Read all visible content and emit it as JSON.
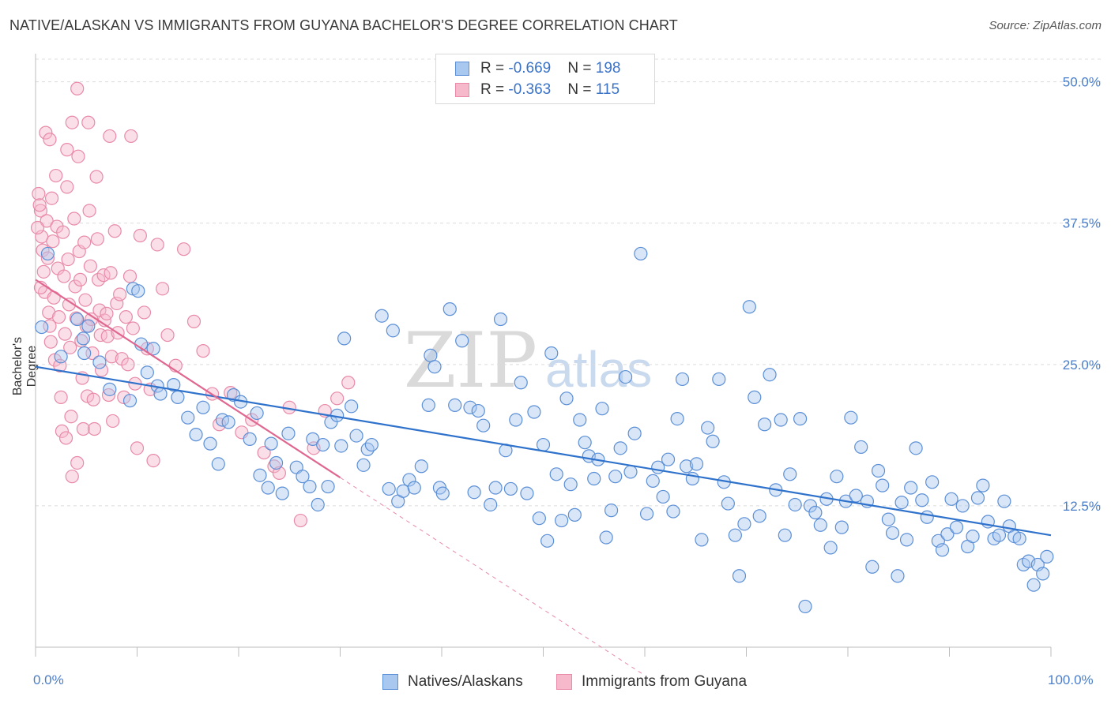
{
  "title": "NATIVE/ALASKAN VS IMMIGRANTS FROM GUYANA BACHELOR'S DEGREE CORRELATION CHART",
  "source": "Source: ZipAtlas.com",
  "watermark": {
    "zip": "ZIP",
    "atlas": "atlas"
  },
  "legend": {
    "r_label": "R = ",
    "n_label": "N = ",
    "series1": {
      "r": "-0.669",
      "n": "198"
    },
    "series2": {
      "r": "-0.363",
      "n": "115"
    }
  },
  "colors": {
    "blue_fill": "#a9c8f0",
    "blue_stroke": "#5b8fd6",
    "blue_line": "#2f72cc",
    "pink_fill": "#f6b9cc",
    "pink_stroke": "#e88aa8",
    "pink_line": "#e0678f",
    "tick_text": "#4a7ec9"
  },
  "chart_data": {
    "type": "scatter",
    "title": "NATIVE/ALASKAN VS IMMIGRANTS FROM GUYANA BACHELOR'S DEGREE CORRELATION CHART",
    "xlabel": "",
    "ylabel": "Bachelor's Degree",
    "xlim": [
      0,
      100
    ],
    "ylim": [
      0,
      52
    ],
    "x_tick_labels": [
      "0.0%",
      "100.0%"
    ],
    "y_ticks": [
      12.5,
      25.0,
      37.5,
      50.0
    ],
    "y_tick_labels": [
      "12.5%",
      "25.0%",
      "37.5%",
      "50.0%"
    ],
    "grid": true,
    "legend_position": "top-center",
    "series": [
      {
        "name": "Natives/Alaskans",
        "r": -0.669,
        "n": 198,
        "trend": {
          "x0": 0,
          "y0": 24.8,
          "x1": 100,
          "y1": 9.9
        },
        "points": [
          [
            0.6,
            28.3
          ],
          [
            1.2,
            34.8
          ],
          [
            2.5,
            25.7
          ],
          [
            4.1,
            29.0
          ],
          [
            4.7,
            27.3
          ],
          [
            4.8,
            26.0
          ],
          [
            5.2,
            28.4
          ],
          [
            6.3,
            25.2
          ],
          [
            7.3,
            22.8
          ],
          [
            9.3,
            21.8
          ],
          [
            9.6,
            31.7
          ],
          [
            10.1,
            31.5
          ],
          [
            10.4,
            26.8
          ],
          [
            11.0,
            24.3
          ],
          [
            11.6,
            26.4
          ],
          [
            12.0,
            23.1
          ],
          [
            12.3,
            22.4
          ],
          [
            13.6,
            23.2
          ],
          [
            14.0,
            22.1
          ],
          [
            15.0,
            20.3
          ],
          [
            15.8,
            18.8
          ],
          [
            16.5,
            21.2
          ],
          [
            17.2,
            18.0
          ],
          [
            18.0,
            16.2
          ],
          [
            18.4,
            20.1
          ],
          [
            19.0,
            19.9
          ],
          [
            19.5,
            22.3
          ],
          [
            20.2,
            21.7
          ],
          [
            21.1,
            18.4
          ],
          [
            21.8,
            20.7
          ],
          [
            22.1,
            15.2
          ],
          [
            22.9,
            14.1
          ],
          [
            23.2,
            18.0
          ],
          [
            23.7,
            16.3
          ],
          [
            24.3,
            13.6
          ],
          [
            24.9,
            18.9
          ],
          [
            25.7,
            15.9
          ],
          [
            26.3,
            15.1
          ],
          [
            27.0,
            14.2
          ],
          [
            27.3,
            18.4
          ],
          [
            27.8,
            12.6
          ],
          [
            28.3,
            17.9
          ],
          [
            28.8,
            14.2
          ],
          [
            29.1,
            19.9
          ],
          [
            29.7,
            20.5
          ],
          [
            30.1,
            17.8
          ],
          [
            30.4,
            27.3
          ],
          [
            31.1,
            21.3
          ],
          [
            31.6,
            18.7
          ],
          [
            32.3,
            16.1
          ],
          [
            32.7,
            17.5
          ],
          [
            33.1,
            17.9
          ],
          [
            34.1,
            29.3
          ],
          [
            34.8,
            14.0
          ],
          [
            35.2,
            28.0
          ],
          [
            35.7,
            12.9
          ],
          [
            36.2,
            13.8
          ],
          [
            36.8,
            14.8
          ],
          [
            37.3,
            14.1
          ],
          [
            38.0,
            16.0
          ],
          [
            38.7,
            21.4
          ],
          [
            38.9,
            25.8
          ],
          [
            39.3,
            24.8
          ],
          [
            39.8,
            14.1
          ],
          [
            40.1,
            13.6
          ],
          [
            40.8,
            29.9
          ],
          [
            41.3,
            21.4
          ],
          [
            42.0,
            27.1
          ],
          [
            42.8,
            21.2
          ],
          [
            43.2,
            13.7
          ],
          [
            43.6,
            20.9
          ],
          [
            44.1,
            19.6
          ],
          [
            44.8,
            12.6
          ],
          [
            45.3,
            14.1
          ],
          [
            45.8,
            29.0
          ],
          [
            46.3,
            17.4
          ],
          [
            46.8,
            14.0
          ],
          [
            47.3,
            20.1
          ],
          [
            47.8,
            23.4
          ],
          [
            48.4,
            13.6
          ],
          [
            49.1,
            20.8
          ],
          [
            49.6,
            11.4
          ],
          [
            50.0,
            17.9
          ],
          [
            50.4,
            9.4
          ],
          [
            50.8,
            26.0
          ],
          [
            51.3,
            15.3
          ],
          [
            51.8,
            11.2
          ],
          [
            52.3,
            22.0
          ],
          [
            52.7,
            14.4
          ],
          [
            53.1,
            11.7
          ],
          [
            53.6,
            20.1
          ],
          [
            54.1,
            18.1
          ],
          [
            54.5,
            16.9
          ],
          [
            55.0,
            14.9
          ],
          [
            55.4,
            16.6
          ],
          [
            55.8,
            21.1
          ],
          [
            56.2,
            9.7
          ],
          [
            56.7,
            12.1
          ],
          [
            57.1,
            15.1
          ],
          [
            57.6,
            17.6
          ],
          [
            58.1,
            23.9
          ],
          [
            58.6,
            15.5
          ],
          [
            59.0,
            18.9
          ],
          [
            59.6,
            34.8
          ],
          [
            60.2,
            11.8
          ],
          [
            60.8,
            14.7
          ],
          [
            61.3,
            15.9
          ],
          [
            61.8,
            13.3
          ],
          [
            62.3,
            16.6
          ],
          [
            62.8,
            12.0
          ],
          [
            63.2,
            20.2
          ],
          [
            63.7,
            23.7
          ],
          [
            64.1,
            16.0
          ],
          [
            64.7,
            14.9
          ],
          [
            65.1,
            16.2
          ],
          [
            65.6,
            9.5
          ],
          [
            66.2,
            19.4
          ],
          [
            66.7,
            18.2
          ],
          [
            67.3,
            23.7
          ],
          [
            67.8,
            14.6
          ],
          [
            68.2,
            12.7
          ],
          [
            68.9,
            9.9
          ],
          [
            69.3,
            6.3
          ],
          [
            69.8,
            10.9
          ],
          [
            70.3,
            30.1
          ],
          [
            70.8,
            22.1
          ],
          [
            71.3,
            11.6
          ],
          [
            71.8,
            19.7
          ],
          [
            72.3,
            24.1
          ],
          [
            72.9,
            13.9
          ],
          [
            73.4,
            20.1
          ],
          [
            73.8,
            9.9
          ],
          [
            74.3,
            15.3
          ],
          [
            74.8,
            12.6
          ],
          [
            75.3,
            20.2
          ],
          [
            75.8,
            3.6
          ],
          [
            76.3,
            12.5
          ],
          [
            76.8,
            11.9
          ],
          [
            77.3,
            10.8
          ],
          [
            77.9,
            13.1
          ],
          [
            78.3,
            8.8
          ],
          [
            78.9,
            15.1
          ],
          [
            79.4,
            10.6
          ],
          [
            79.8,
            12.9
          ],
          [
            80.3,
            20.3
          ],
          [
            80.8,
            13.4
          ],
          [
            81.3,
            17.7
          ],
          [
            81.9,
            12.9
          ],
          [
            82.4,
            7.1
          ],
          [
            83.0,
            15.6
          ],
          [
            83.4,
            14.3
          ],
          [
            84.0,
            11.3
          ],
          [
            84.4,
            10.1
          ],
          [
            84.9,
            6.3
          ],
          [
            85.3,
            12.8
          ],
          [
            85.8,
            9.5
          ],
          [
            86.2,
            14.1
          ],
          [
            86.7,
            17.6
          ],
          [
            87.3,
            13.0
          ],
          [
            87.8,
            11.5
          ],
          [
            88.3,
            14.6
          ],
          [
            88.9,
            9.4
          ],
          [
            89.3,
            8.6
          ],
          [
            89.8,
            10.0
          ],
          [
            90.2,
            13.1
          ],
          [
            90.7,
            10.6
          ],
          [
            91.3,
            12.5
          ],
          [
            91.8,
            8.9
          ],
          [
            92.3,
            9.8
          ],
          [
            92.8,
            13.2
          ],
          [
            93.3,
            14.3
          ],
          [
            93.8,
            11.1
          ],
          [
            94.4,
            9.6
          ],
          [
            94.9,
            9.9
          ],
          [
            95.4,
            12.9
          ],
          [
            95.9,
            10.7
          ],
          [
            96.4,
            9.8
          ],
          [
            96.9,
            9.6
          ],
          [
            97.3,
            7.3
          ],
          [
            97.8,
            7.6
          ],
          [
            98.3,
            5.5
          ],
          [
            98.7,
            7.3
          ],
          [
            99.2,
            6.5
          ],
          [
            99.6,
            8.0
          ]
        ]
      },
      {
        "name": "Immigrants from Guyana",
        "r": -0.363,
        "n": 115,
        "trend": {
          "x0": 0,
          "y0": 32.5,
          "x1": 30,
          "y1": 15.0
        },
        "trend_extension": {
          "x0": 30,
          "y0": 15.0,
          "x1": 60,
          "y1": -2.5
        },
        "points": [
          [
            0.3,
            40.1
          ],
          [
            0.5,
            38.6
          ],
          [
            0.6,
            36.3
          ],
          [
            0.7,
            35.1
          ],
          [
            0.8,
            33.2
          ],
          [
            0.9,
            31.4
          ],
          [
            1.0,
            45.5
          ],
          [
            1.1,
            37.7
          ],
          [
            1.2,
            34.4
          ],
          [
            1.3,
            29.6
          ],
          [
            1.4,
            28.4
          ],
          [
            1.5,
            27.0
          ],
          [
            1.6,
            39.7
          ],
          [
            1.7,
            35.9
          ],
          [
            1.8,
            30.9
          ],
          [
            1.9,
            25.4
          ],
          [
            2.0,
            41.7
          ],
          [
            2.1,
            37.2
          ],
          [
            2.2,
            33.5
          ],
          [
            2.3,
            29.2
          ],
          [
            2.4,
            24.9
          ],
          [
            2.5,
            22.1
          ],
          [
            2.6,
            19.1
          ],
          [
            2.7,
            36.7
          ],
          [
            2.8,
            32.8
          ],
          [
            2.9,
            27.7
          ],
          [
            3.0,
            18.5
          ],
          [
            3.1,
            40.7
          ],
          [
            3.2,
            34.3
          ],
          [
            3.3,
            30.3
          ],
          [
            3.4,
            26.5
          ],
          [
            3.5,
            20.4
          ],
          [
            3.6,
            15.1
          ],
          [
            3.8,
            37.9
          ],
          [
            3.9,
            31.9
          ],
          [
            4.0,
            29.1
          ],
          [
            4.1,
            16.3
          ],
          [
            4.2,
            43.4
          ],
          [
            4.3,
            35.0
          ],
          [
            4.4,
            32.5
          ],
          [
            4.5,
            27.1
          ],
          [
            4.6,
            23.8
          ],
          [
            4.7,
            19.3
          ],
          [
            4.8,
            35.8
          ],
          [
            4.9,
            30.7
          ],
          [
            5.0,
            28.4
          ],
          [
            5.1,
            22.2
          ],
          [
            5.2,
            46.4
          ],
          [
            5.3,
            38.6
          ],
          [
            5.4,
            33.7
          ],
          [
            5.5,
            29.0
          ],
          [
            5.6,
            26.0
          ],
          [
            5.7,
            21.9
          ],
          [
            5.8,
            19.3
          ],
          [
            6.0,
            41.6
          ],
          [
            6.1,
            36.1
          ],
          [
            6.2,
            32.5
          ],
          [
            6.3,
            29.8
          ],
          [
            6.4,
            27.6
          ],
          [
            6.5,
            24.5
          ],
          [
            6.7,
            32.9
          ],
          [
            6.8,
            28.9
          ],
          [
            7.0,
            29.5
          ],
          [
            7.1,
            27.5
          ],
          [
            7.2,
            22.3
          ],
          [
            7.3,
            45.2
          ],
          [
            7.4,
            33.1
          ],
          [
            7.5,
            25.7
          ],
          [
            7.6,
            20.0
          ],
          [
            7.8,
            36.8
          ],
          [
            8.0,
            30.4
          ],
          [
            8.1,
            27.8
          ],
          [
            8.3,
            31.2
          ],
          [
            8.5,
            25.5
          ],
          [
            8.7,
            22.1
          ],
          [
            8.9,
            29.2
          ],
          [
            9.1,
            25.0
          ],
          [
            9.3,
            32.8
          ],
          [
            9.4,
            45.2
          ],
          [
            9.6,
            28.2
          ],
          [
            9.8,
            23.3
          ],
          [
            10.0,
            17.6
          ],
          [
            10.3,
            36.4
          ],
          [
            10.7,
            29.6
          ],
          [
            11.0,
            26.4
          ],
          [
            11.3,
            22.8
          ],
          [
            11.6,
            16.5
          ],
          [
            12.0,
            35.6
          ],
          [
            12.5,
            31.7
          ],
          [
            13.0,
            27.6
          ],
          [
            13.8,
            24.9
          ],
          [
            14.6,
            35.2
          ],
          [
            15.6,
            28.8
          ],
          [
            16.5,
            26.2
          ],
          [
            17.4,
            22.4
          ],
          [
            18.1,
            19.7
          ],
          [
            19.2,
            22.5
          ],
          [
            20.3,
            19.0
          ],
          [
            21.3,
            20.1
          ],
          [
            22.5,
            17.2
          ],
          [
            23.5,
            16.0
          ],
          [
            24.0,
            15.4
          ],
          [
            25.0,
            21.2
          ],
          [
            26.1,
            11.2
          ],
          [
            27.4,
            17.6
          ],
          [
            28.5,
            20.9
          ],
          [
            29.7,
            22.0
          ],
          [
            30.8,
            23.4
          ],
          [
            4.1,
            49.4
          ],
          [
            3.6,
            46.4
          ],
          [
            1.4,
            44.9
          ],
          [
            3.1,
            44.0
          ],
          [
            0.4,
            39.1
          ],
          [
            0.2,
            37.1
          ],
          [
            0.5,
            31.8
          ]
        ]
      }
    ]
  },
  "bottom_legend": {
    "series1": "Natives/Alaskans",
    "series2": "Immigrants from Guyana"
  }
}
